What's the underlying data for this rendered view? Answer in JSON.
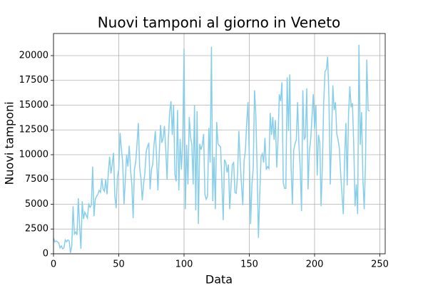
{
  "chart_data": {
    "type": "line",
    "title": "Nuovi tamponi al giorno in Veneto",
    "x_label": "Data",
    "y_label": "Nuovi tamponi",
    "x": [
      0,
      1,
      2,
      3,
      4,
      5,
      6,
      7,
      8,
      9,
      10,
      11,
      12,
      13,
      14,
      15,
      16,
      17,
      18,
      19,
      20,
      21,
      22,
      23,
      24,
      25,
      26,
      27,
      28,
      29,
      30,
      31,
      32,
      33,
      34,
      35,
      36,
      37,
      38,
      39,
      40,
      41,
      42,
      43,
      44,
      45,
      46,
      47,
      48,
      49,
      50,
      51,
      52,
      53,
      54,
      55,
      56,
      57,
      58,
      59,
      60,
      61,
      62,
      63,
      64,
      65,
      66,
      67,
      68,
      69,
      70,
      71,
      72,
      73,
      74,
      75,
      76,
      77,
      78,
      79,
      80,
      81,
      82,
      83,
      84,
      85,
      86,
      87,
      88,
      89,
      90,
      91,
      92,
      93,
      94,
      95,
      96,
      97,
      98,
      99,
      100,
      101,
      102,
      103,
      104,
      105,
      106,
      107,
      108,
      109,
      110,
      111,
      112,
      113,
      114,
      115,
      116,
      117,
      118,
      119,
      120,
      121,
      122,
      123,
      124,
      125,
      126,
      127,
      128,
      129,
      130,
      131,
      132,
      133,
      134,
      135,
      136,
      137,
      138,
      139,
      140,
      141,
      142,
      143,
      144,
      145,
      146,
      147,
      148,
      149,
      150,
      151,
      152,
      153,
      154,
      155,
      156,
      157,
      158,
      159,
      160,
      161,
      162,
      163,
      164,
      165,
      166,
      167,
      168,
      169,
      170,
      171,
      172,
      173,
      174,
      175,
      176,
      177,
      178,
      179,
      180,
      181,
      182,
      183,
      184,
      185,
      186,
      187,
      188,
      189,
      190,
      191,
      192,
      193,
      194,
      195,
      196,
      197,
      198,
      199,
      200,
      201,
      202,
      203,
      204,
      205,
      206,
      207,
      208,
      209,
      210,
      211,
      212,
      213,
      214,
      215,
      216,
      217,
      218,
      219,
      220,
      221,
      222,
      223,
      224,
      225,
      226,
      227,
      228,
      229,
      230,
      231,
      232,
      233,
      234,
      235,
      236,
      237,
      238,
      239,
      240,
      241,
      242
    ],
    "series": [
      {
        "color": "#87ceeb",
        "values": [
          1600,
          1200,
          1300,
          1200,
          1100,
          600,
          800,
          500,
          600,
          1400,
          1200,
          1400,
          1300,
          100,
          800,
          4800,
          2000,
          2200,
          1900,
          5600,
          2800,
          500,
          5300,
          3500,
          4200,
          3900,
          3600,
          5000,
          4700,
          4900,
          8800,
          3800,
          5500,
          5800,
          6000,
          6400,
          6200,
          7600,
          6500,
          6300,
          7500,
          6000,
          8200,
          9800,
          8100,
          9000,
          10200,
          5800,
          4600,
          7800,
          8500,
          12200,
          10600,
          9200,
          5000,
          7400,
          10000,
          8800,
          10900,
          8500,
          7000,
          3600,
          8500,
          9300,
          11100,
          13200,
          8700,
          7600,
          5400,
          7000,
          8200,
          10300,
          10800,
          11200,
          6500,
          8500,
          9000,
          11000,
          12400,
          9600,
          6400,
          10000,
          13000,
          11200,
          11700,
          12900,
          10500,
          7500,
          11600,
          14300,
          15400,
          12000,
          15000,
          8000,
          7300,
          14500,
          6400,
          11600,
          8500,
          11500,
          20700,
          4500,
          11000,
          7000,
          13800,
          11800,
          11000,
          7000,
          15000,
          4400,
          14400,
          3000,
          11100,
          10500,
          11000,
          12100,
          6000,
          5500,
          5800,
          12700,
          9200,
          20900,
          5300,
          9800,
          4500,
          13300,
          11100,
          10900,
          10800,
          7200,
          3400,
          9500,
          9200,
          8200,
          9000,
          4500,
          6900,
          9000,
          9200,
          6200,
          6100,
          8000,
          12400,
          9300,
          7000,
          4900,
          9400,
          10400,
          13200,
          15300,
          9800,
          3000,
          7000,
          8600,
          16500,
          14000,
          8500,
          1600,
          6000,
          9800,
          10100,
          9200,
          11700,
          8500,
          8800,
          8600,
          14200,
          12000,
          13800,
          11500,
          13500,
          8700,
          11500,
          16100,
          15400,
          17300,
          7200,
          6600,
          6600,
          17800,
          12400,
          18100,
          8800,
          5000,
          10400,
          11100,
          11500,
          15300,
          11000,
          8600,
          4300,
          16500,
          11500,
          11800,
          16700,
          6500,
          10300,
          11500,
          13700,
          16100,
          12600,
          15000,
          7900,
          12000,
          11200,
          4800,
          9000,
          15300,
          18400,
          18600,
          19900,
          15800,
          7000,
          11800,
          17000,
          14500,
          15300,
          12100,
          11500,
          10600,
          8000,
          6000,
          4000,
          9500,
          13200,
          6900,
          14000,
          16900,
          14800,
          15200,
          11000,
          4800,
          7000,
          4000,
          21100,
          11000,
          14300,
          7600,
          4500,
          9000,
          19600,
          14500,
          14400
        ]
      }
    ],
    "xlim": [
      0,
      254.1
    ],
    "xticks": [
      0,
      50,
      100,
      150,
      200,
      250
    ],
    "ylim": [
      0,
      22230
    ],
    "yticks": [
      0,
      2500,
      5000,
      7500,
      10000,
      12500,
      15000,
      17500,
      20000
    ],
    "grid": true
  }
}
